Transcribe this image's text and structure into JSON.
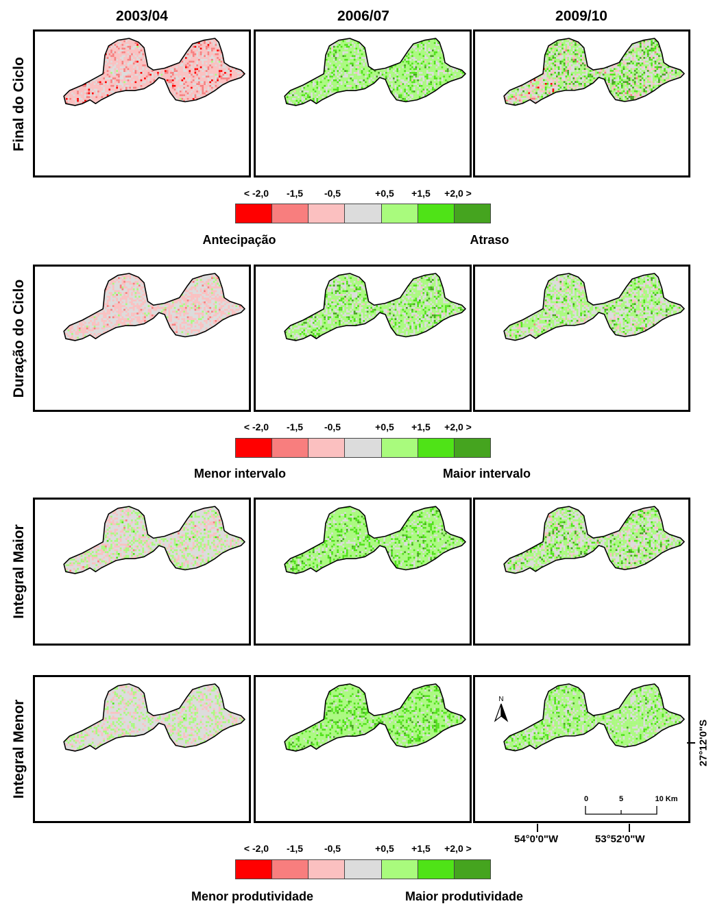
{
  "columns": [
    "2003/04",
    "2006/07",
    "2009/10"
  ],
  "rows": [
    {
      "label": "Final do Ciclo",
      "maps": [
        {
          "mean": -0.9,
          "spread": 0.55,
          "edge": 0
        },
        {
          "mean": 0.9,
          "spread": 0.55,
          "edge": 0
        },
        {
          "mean": 0.6,
          "spread": 0.9,
          "edge": -1.2
        }
      ]
    },
    {
      "label": "Duração do Ciclo",
      "maps": [
        {
          "mean": -0.45,
          "spread": 0.5,
          "edge": 0
        },
        {
          "mean": 0.85,
          "spread": 0.6,
          "edge": 0
        },
        {
          "mean": 0.55,
          "spread": 0.7,
          "edge": 0
        }
      ]
    },
    {
      "label": "Integral Maior",
      "maps": [
        {
          "mean": 0.0,
          "spread": 0.6,
          "edge": 0
        },
        {
          "mean": 1.05,
          "spread": 0.5,
          "edge": 0
        },
        {
          "mean": 0.6,
          "spread": 0.75,
          "edge": 0
        }
      ]
    },
    {
      "label": "Integral Menor",
      "maps": [
        {
          "mean": 0.05,
          "spread": 0.5,
          "edge": 0
        },
        {
          "mean": 1.15,
          "spread": 0.45,
          "edge": 0
        },
        {
          "mean": 0.85,
          "spread": 0.5,
          "edge": 0
        }
      ]
    }
  ],
  "legend": {
    "ticks": [
      "< -2,0",
      "-1,5",
      "-0,5",
      "+0,5",
      "+1,5",
      "+2,0 >"
    ],
    "colors": [
      "#ff0000",
      "#f87e7e",
      "#fbc0c0",
      "#dcdcdc",
      "#a9fb7d",
      "#4fe317",
      "#45a41f"
    ]
  },
  "legends": [
    {
      "left": "Antecipação",
      "right": "Atraso"
    },
    {
      "left": "Menor intervalo",
      "right": "Maior intervalo"
    },
    {
      "left": "Menor produtividade",
      "right": "Maior produtividade"
    }
  ],
  "map_extras": {
    "north": "N",
    "lat": "27°12'0\"S",
    "lon_left": "54°0'0\"W",
    "lon_right": "53°52'0\"W",
    "scale": [
      "0",
      "5",
      "10 Km"
    ]
  }
}
